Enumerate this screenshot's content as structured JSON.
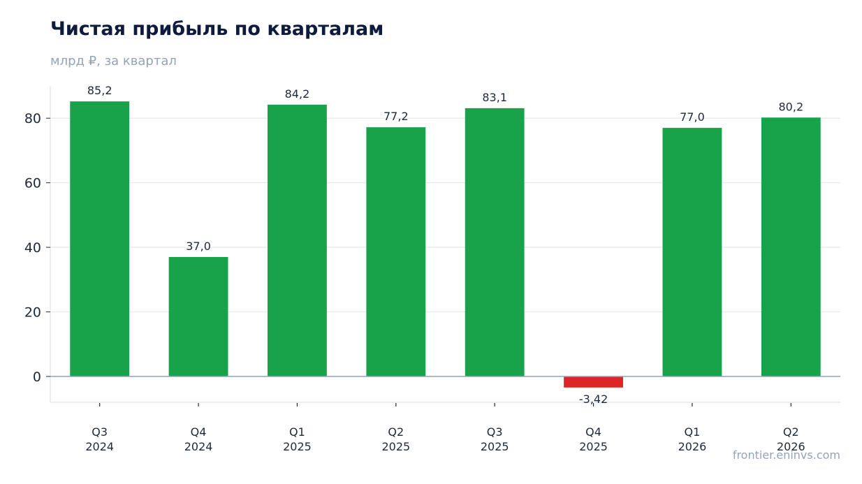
{
  "chart_data": {
    "type": "bar",
    "title": "Чистая прибыль по кварталам",
    "subtitle": "млрд ₽, за квартал",
    "categories": [
      [
        "Q3",
        "2024"
      ],
      [
        "Q4",
        "2024"
      ],
      [
        "Q1",
        "2025"
      ],
      [
        "Q2",
        "2025"
      ],
      [
        "Q3",
        "2025"
      ],
      [
        "Q4",
        "2025"
      ],
      [
        "Q1",
        "2026"
      ],
      [
        "Q2",
        "2026"
      ]
    ],
    "values": [
      85.2,
      37.0,
      84.2,
      77.2,
      83.1,
      -3.42,
      77.0,
      80.2
    ],
    "value_labels": [
      "85,2",
      "37,0",
      "84,2",
      "77,2",
      "83,1",
      "-3,42",
      "77,0",
      "80,2"
    ],
    "ylim": [
      -8,
      90
    ],
    "yticks": [
      0,
      20,
      40,
      60,
      80
    ],
    "grid": true,
    "colors": {
      "positive": "#18a34a",
      "negative": "#dc2626",
      "grid": "#e5e7eb",
      "zero_line": "#94a3b8",
      "axis": "#e5e7eb"
    }
  },
  "source": "frontier.eninvs.com"
}
